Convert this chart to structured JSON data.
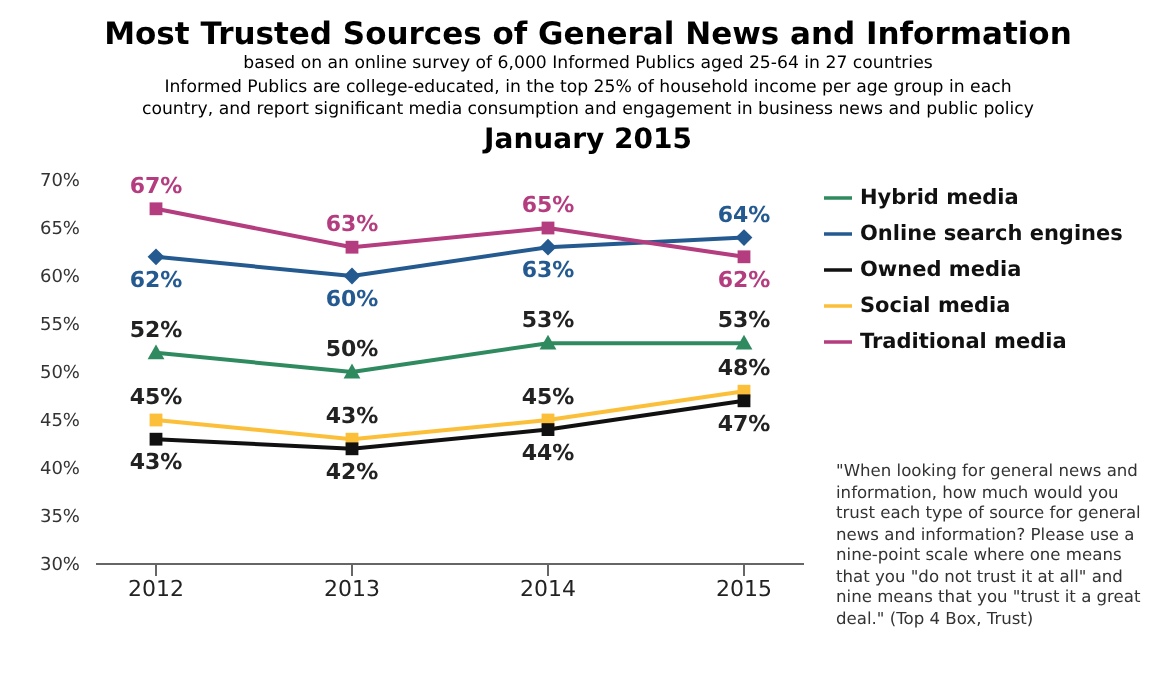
{
  "chart_data": {
    "type": "line",
    "title": "Most Trusted Sources of General News and Information",
    "subtitle": "based on an online survey of 6,000 Informed Publics aged 25-64 in 27 countries\nInformed Publics are college-educated, in the top 25% of household income per age group in each country, and report significant media consumption and engagement in business news and public policy\nJanuary 2015",
    "categories": [
      "2012",
      "2013",
      "2014",
      "2015"
    ],
    "series": [
      {
        "name": "Online search engines",
        "color": "#245a8f",
        "marker": "diamond",
        "values": [
          62,
          60,
          63,
          64
        ],
        "value_labels": [
          "62%",
          "60%",
          "63%",
          "64%"
        ]
      },
      {
        "name": "Traditional media",
        "color": "#b33d7e",
        "marker": "square",
        "values": [
          67,
          63,
          65,
          62
        ],
        "value_labels": [
          "67%",
          "63%",
          "65%",
          "62%"
        ]
      },
      {
        "name": "Hybrid media",
        "color": "#2f8a5f",
        "marker": "triangle",
        "values": [
          52,
          50,
          53,
          53
        ],
        "value_labels": [
          "52%",
          "50%",
          "53%",
          "53%"
        ]
      },
      {
        "name": "Social media",
        "color": "#fbbf3a",
        "marker": "square",
        "values": [
          45,
          43,
          45,
          48
        ],
        "value_labels": [
          "45%",
          "43%",
          "45%",
          "48%"
        ]
      },
      {
        "name": "Owned media",
        "color": "#111111",
        "marker": "square",
        "values": [
          43,
          42,
          44,
          47
        ],
        "value_labels": [
          "43%",
          "42%",
          "44%",
          "47%"
        ]
      }
    ],
    "ylim": [
      30,
      70
    ],
    "yticks": [
      {
        "value": 30,
        "label": "30%"
      },
      {
        "value": 35,
        "label": "35%"
      },
      {
        "value": 40,
        "label": "40%"
      },
      {
        "value": 45,
        "label": "45%"
      },
      {
        "value": 50,
        "label": "50%"
      },
      {
        "value": 55,
        "label": "55%"
      },
      {
        "value": 60,
        "label": "60%"
      },
      {
        "value": 65,
        "label": "65%"
      },
      {
        "value": 70,
        "label": "70%"
      }
    ],
    "grid": false,
    "legend": "right",
    "annotations": [
      "\"When looking for general news and information, how much would you trust each type of source for general news and information? Please use a nine-point scale where one means that you \"do not trust it at all\" and nine means that you \"trust it a great deal.\" (Top 4 Box, Trust)"
    ]
  }
}
